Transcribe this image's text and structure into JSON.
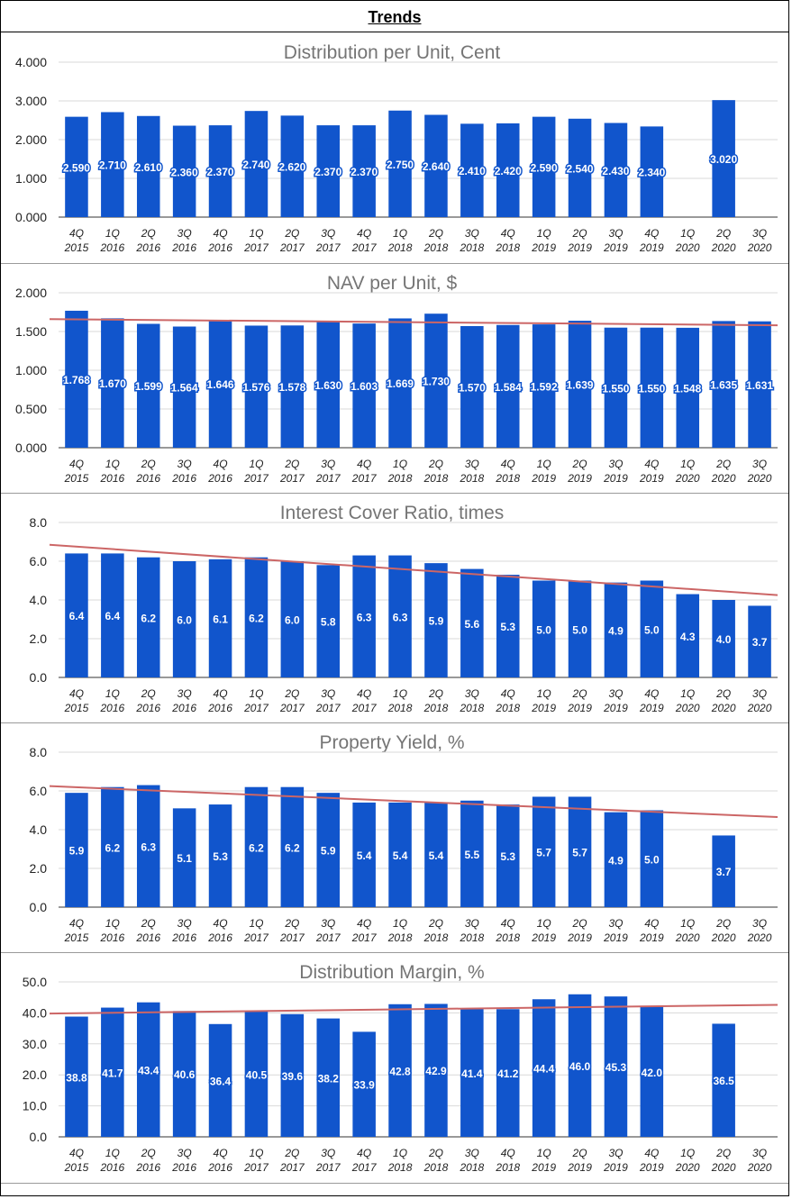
{
  "page": {
    "title": "Trends"
  },
  "chart_data": [
    {
      "type": "bar",
      "title": "Distribution per Unit, Cent",
      "categories": [
        [
          "4Q",
          "2015"
        ],
        [
          "1Q",
          "2016"
        ],
        [
          "2Q",
          "2016"
        ],
        [
          "3Q",
          "2016"
        ],
        [
          "4Q",
          "2016"
        ],
        [
          "1Q",
          "2017"
        ],
        [
          "2Q",
          "2017"
        ],
        [
          "3Q",
          "2017"
        ],
        [
          "4Q",
          "2017"
        ],
        [
          "1Q",
          "2018"
        ],
        [
          "2Q",
          "2018"
        ],
        [
          "3Q",
          "2018"
        ],
        [
          "4Q",
          "2018"
        ],
        [
          "1Q",
          "2019"
        ],
        [
          "2Q",
          "2019"
        ],
        [
          "3Q",
          "2019"
        ],
        [
          "4Q",
          "2019"
        ],
        [
          "1Q",
          "2020"
        ],
        [
          "2Q",
          "2020"
        ],
        [
          "3Q",
          "2020"
        ]
      ],
      "values": [
        2.59,
        2.71,
        2.61,
        2.36,
        2.37,
        2.74,
        2.62,
        2.37,
        2.37,
        2.75,
        2.64,
        2.41,
        2.42,
        2.59,
        2.54,
        2.43,
        2.34,
        null,
        3.02,
        null
      ],
      "labels": [
        "2.590",
        "2.710",
        "2.610",
        "2.360",
        "2.370",
        "2.740",
        "2.620",
        "2.370",
        "2.370",
        "2.750",
        "2.640",
        "2.410",
        "2.420",
        "2.590",
        "2.540",
        "2.430",
        "2.340",
        "",
        "3.020",
        ""
      ],
      "yticks": [
        "0.000",
        "1.000",
        "2.000",
        "3.000",
        "4.000"
      ],
      "ylim": [
        0,
        4
      ],
      "trendline": null,
      "label_style": "outlined",
      "bar_color": "#1155cc",
      "grid": true
    },
    {
      "type": "bar",
      "title": "NAV per Unit, $",
      "categories": [
        [
          "4Q",
          "2015"
        ],
        [
          "1Q",
          "2016"
        ],
        [
          "2Q",
          "2016"
        ],
        [
          "3Q",
          "2016"
        ],
        [
          "4Q",
          "2016"
        ],
        [
          "1Q",
          "2017"
        ],
        [
          "2Q",
          "2017"
        ],
        [
          "3Q",
          "2017"
        ],
        [
          "4Q",
          "2017"
        ],
        [
          "1Q",
          "2018"
        ],
        [
          "2Q",
          "2018"
        ],
        [
          "3Q",
          "2018"
        ],
        [
          "4Q",
          "2018"
        ],
        [
          "1Q",
          "2019"
        ],
        [
          "2Q",
          "2019"
        ],
        [
          "3Q",
          "2019"
        ],
        [
          "4Q",
          "2019"
        ],
        [
          "1Q",
          "2020"
        ],
        [
          "2Q",
          "2020"
        ],
        [
          "3Q",
          "2020"
        ]
      ],
      "values": [
        1.768,
        1.67,
        1.599,
        1.564,
        1.646,
        1.576,
        1.578,
        1.63,
        1.603,
        1.669,
        1.73,
        1.57,
        1.584,
        1.592,
        1.639,
        1.55,
        1.55,
        1.548,
        1.635,
        1.631
      ],
      "labels": [
        "1.768",
        "1.670",
        "1.599",
        "1.564",
        "1.646",
        "1.576",
        "1.578",
        "1.630",
        "1.603",
        "1.669",
        "1.730",
        "1.570",
        "1.584",
        "1.592",
        "1.639",
        "1.550",
        "1.550",
        "1.548",
        "1.635",
        "1.631"
      ],
      "yticks": [
        "0.000",
        "0.500",
        "1.000",
        "1.500",
        "2.000"
      ],
      "ylim": [
        0,
        2
      ],
      "trendline": [
        1.66,
        1.58
      ],
      "label_style": "outlined",
      "bar_color": "#1155cc",
      "trend_color": "#cc6666",
      "grid": true
    },
    {
      "type": "bar",
      "title": "Interest Cover Ratio, times",
      "categories": [
        [
          "4Q",
          "2015"
        ],
        [
          "1Q",
          "2016"
        ],
        [
          "2Q",
          "2016"
        ],
        [
          "3Q",
          "2016"
        ],
        [
          "4Q",
          "2016"
        ],
        [
          "1Q",
          "2017"
        ],
        [
          "2Q",
          "2017"
        ],
        [
          "3Q",
          "2017"
        ],
        [
          "4Q",
          "2017"
        ],
        [
          "1Q",
          "2018"
        ],
        [
          "2Q",
          "2018"
        ],
        [
          "3Q",
          "2018"
        ],
        [
          "4Q",
          "2018"
        ],
        [
          "1Q",
          "2019"
        ],
        [
          "2Q",
          "2019"
        ],
        [
          "3Q",
          "2019"
        ],
        [
          "4Q",
          "2019"
        ],
        [
          "1Q",
          "2020"
        ],
        [
          "2Q",
          "2020"
        ],
        [
          "3Q",
          "2020"
        ]
      ],
      "values": [
        6.4,
        6.4,
        6.2,
        6.0,
        6.1,
        6.2,
        6.0,
        5.8,
        6.3,
        6.3,
        5.9,
        5.6,
        5.3,
        5.0,
        5.0,
        4.9,
        5.0,
        4.3,
        4.0,
        3.7
      ],
      "labels": [
        "6.4",
        "6.4",
        "6.2",
        "6.0",
        "6.1",
        "6.2",
        "6.0",
        "5.8",
        "6.3",
        "6.3",
        "5.9",
        "5.6",
        "5.3",
        "5.0",
        "5.0",
        "4.9",
        "5.0",
        "4.3",
        "4.0",
        "3.7"
      ],
      "yticks": [
        "0.0",
        "2.0",
        "4.0",
        "6.0",
        "8.0"
      ],
      "ylim": [
        0,
        8
      ],
      "trendline": [
        6.85,
        4.25
      ],
      "label_style": "plain",
      "bar_color": "#1155cc",
      "trend_color": "#cc6666",
      "grid": true
    },
    {
      "type": "bar",
      "title": "Property Yield, %",
      "categories": [
        [
          "4Q",
          "2015"
        ],
        [
          "1Q",
          "2016"
        ],
        [
          "2Q",
          "2016"
        ],
        [
          "3Q",
          "2016"
        ],
        [
          "4Q",
          "2016"
        ],
        [
          "1Q",
          "2017"
        ],
        [
          "2Q",
          "2017"
        ],
        [
          "3Q",
          "2017"
        ],
        [
          "4Q",
          "2017"
        ],
        [
          "1Q",
          "2018"
        ],
        [
          "2Q",
          "2018"
        ],
        [
          "3Q",
          "2018"
        ],
        [
          "4Q",
          "2018"
        ],
        [
          "1Q",
          "2019"
        ],
        [
          "2Q",
          "2019"
        ],
        [
          "3Q",
          "2019"
        ],
        [
          "4Q",
          "2019"
        ],
        [
          "1Q",
          "2020"
        ],
        [
          "2Q",
          "2020"
        ],
        [
          "3Q",
          "2020"
        ]
      ],
      "values": [
        5.9,
        6.2,
        6.3,
        5.1,
        5.3,
        6.2,
        6.2,
        5.9,
        5.4,
        5.4,
        5.4,
        5.5,
        5.3,
        5.7,
        5.7,
        4.9,
        5.0,
        null,
        3.7,
        null
      ],
      "labels": [
        "5.9",
        "6.2",
        "6.3",
        "5.1",
        "5.3",
        "6.2",
        "6.2",
        "5.9",
        "5.4",
        "5.4",
        "5.4",
        "5.5",
        "5.3",
        "5.7",
        "5.7",
        "4.9",
        "5.0",
        "",
        "3.7",
        ""
      ],
      "yticks": [
        "0.0",
        "2.0",
        "4.0",
        "6.0",
        "8.0"
      ],
      "ylim": [
        0,
        8
      ],
      "trendline": [
        6.25,
        4.65
      ],
      "label_style": "plain",
      "bar_color": "#1155cc",
      "trend_color": "#cc6666",
      "grid": true
    },
    {
      "type": "bar",
      "title": "Distribution Margin, %",
      "categories": [
        [
          "4Q",
          "2015"
        ],
        [
          "1Q",
          "2016"
        ],
        [
          "2Q",
          "2016"
        ],
        [
          "3Q",
          "2016"
        ],
        [
          "4Q",
          "2016"
        ],
        [
          "1Q",
          "2017"
        ],
        [
          "2Q",
          "2017"
        ],
        [
          "3Q",
          "2017"
        ],
        [
          "4Q",
          "2017"
        ],
        [
          "1Q",
          "2018"
        ],
        [
          "2Q",
          "2018"
        ],
        [
          "3Q",
          "2018"
        ],
        [
          "4Q",
          "2018"
        ],
        [
          "1Q",
          "2019"
        ],
        [
          "2Q",
          "2019"
        ],
        [
          "3Q",
          "2019"
        ],
        [
          "4Q",
          "2019"
        ],
        [
          "1Q",
          "2020"
        ],
        [
          "2Q",
          "2020"
        ],
        [
          "3Q",
          "2020"
        ]
      ],
      "values": [
        38.8,
        41.7,
        43.4,
        40.6,
        36.4,
        40.5,
        39.6,
        38.2,
        33.9,
        42.8,
        42.9,
        41.4,
        41.2,
        44.4,
        46.0,
        45.3,
        42.0,
        null,
        36.5,
        null
      ],
      "labels": [
        "38.8",
        "41.7",
        "43.4",
        "40.6",
        "36.4",
        "40.5",
        "39.6",
        "38.2",
        "33.9",
        "42.8",
        "42.9",
        "41.4",
        "41.2",
        "44.4",
        "46.0",
        "45.3",
        "42.0",
        "",
        "36.5",
        ""
      ],
      "yticks": [
        "0.0",
        "10.0",
        "20.0",
        "30.0",
        "40.0",
        "50.0"
      ],
      "ylim": [
        0,
        50
      ],
      "trendline": [
        39.8,
        42.6
      ],
      "label_style": "outlined",
      "bar_color": "#1155cc",
      "trend_color": "#cc6666",
      "grid": true
    }
  ]
}
